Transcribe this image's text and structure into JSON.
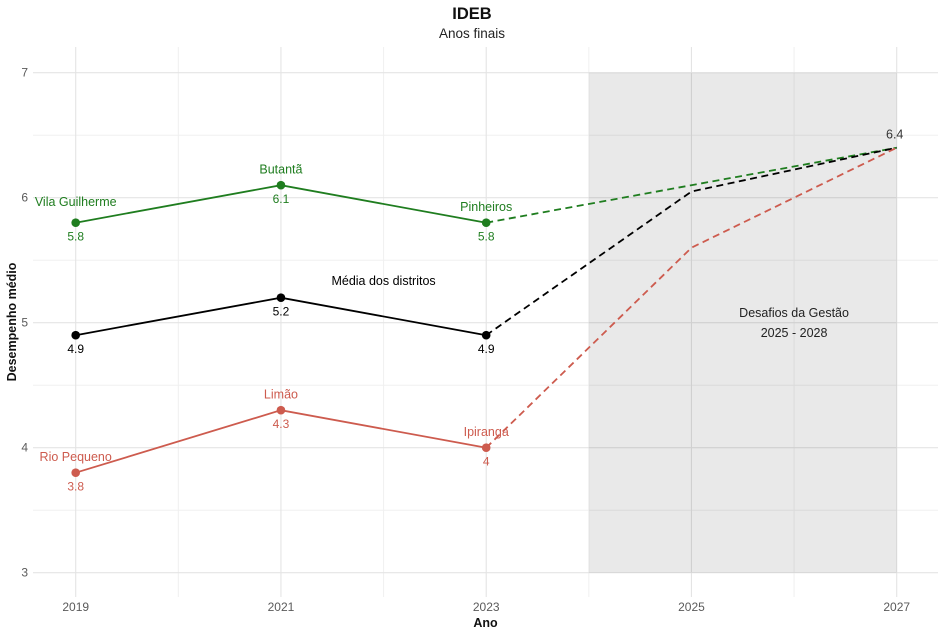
{
  "chart_data": {
    "type": "line",
    "title": "IDEB",
    "subtitle": "Anos finais",
    "xlabel": "Ano",
    "ylabel": "Desempenho médio",
    "x_ticks": [
      2019,
      2021,
      2023,
      2025,
      2027
    ],
    "x_minor_ticks": [
      2020,
      2022,
      2024,
      2026
    ],
    "y_ticks": [
      3,
      4,
      5,
      6,
      7
    ],
    "y_minor_ticks": [
      3.5,
      4.5,
      5.5,
      6.5
    ],
    "xlim": [
      2018.58,
      2027.4
    ],
    "ylim": [
      2.8,
      7.2
    ],
    "grid": true,
    "legend": "direct-labels",
    "colors": {
      "top_series": "#1f7d1f",
      "average_series": "#000000",
      "bottom_series": "#cd5b4e",
      "projection_region_fill": "rgba(0,0,0,0.085)",
      "grid_major": "#e4e4e4",
      "grid_minor": "#f0f0f0",
      "tick_text": "#5a5a5a",
      "target_label_text": "#333333",
      "region_text": "#222222"
    },
    "series": [
      {
        "id": "top-districts",
        "color": "#1f7d1f",
        "x": [
          2019,
          2021,
          2023
        ],
        "values": [
          5.8,
          6.1,
          5.8
        ],
        "point_labels": [
          {
            "name": "Vila Guilherme",
            "value": "5.8",
            "name_offset": 16.5
          },
          {
            "name": "Butantã",
            "value": "6.1"
          },
          {
            "name": "Pinheiros",
            "value": "5.8"
          }
        ],
        "projection": {
          "x": [
            2023,
            2027
          ],
          "values": [
            5.8,
            6.4
          ]
        }
      },
      {
        "id": "district-average",
        "color": "#000000",
        "series_label": {
          "text": "Média dos distritos",
          "x": 2022,
          "y": 5.3
        },
        "x": [
          2019,
          2021,
          2023
        ],
        "values": [
          4.9,
          5.2,
          4.9
        ],
        "point_labels": [
          {
            "value": "4.9"
          },
          {
            "value": "5.2"
          },
          {
            "value": "4.9"
          }
        ],
        "projection": {
          "x": [
            2023,
            2025,
            2027
          ],
          "values": [
            4.9,
            6.05,
            6.4
          ]
        }
      },
      {
        "id": "bottom-districts",
        "color": "#cd5b4e",
        "x": [
          2019,
          2021,
          2023
        ],
        "values": [
          3.8,
          4.3,
          4.0
        ],
        "point_labels": [
          {
            "name": "Rio Pequeno",
            "value": "3.8"
          },
          {
            "name": "Limão",
            "value": "4.3"
          },
          {
            "name": "Ipiranga",
            "value": "4"
          }
        ],
        "projection": {
          "x": [
            2023,
            2025,
            2027
          ],
          "values": [
            4.0,
            5.6,
            6.4
          ]
        }
      }
    ],
    "annotations": {
      "target_value_label": "6.4",
      "target_x": 2027,
      "target_y": 6.4,
      "shaded_region": {
        "x_start": 2024,
        "x_end": 2027,
        "y_start": 3,
        "y_end": 7,
        "text_anchor_x": 2026,
        "lines": [
          "Desafios da Gestão",
          "2025 - 2028"
        ]
      }
    }
  }
}
